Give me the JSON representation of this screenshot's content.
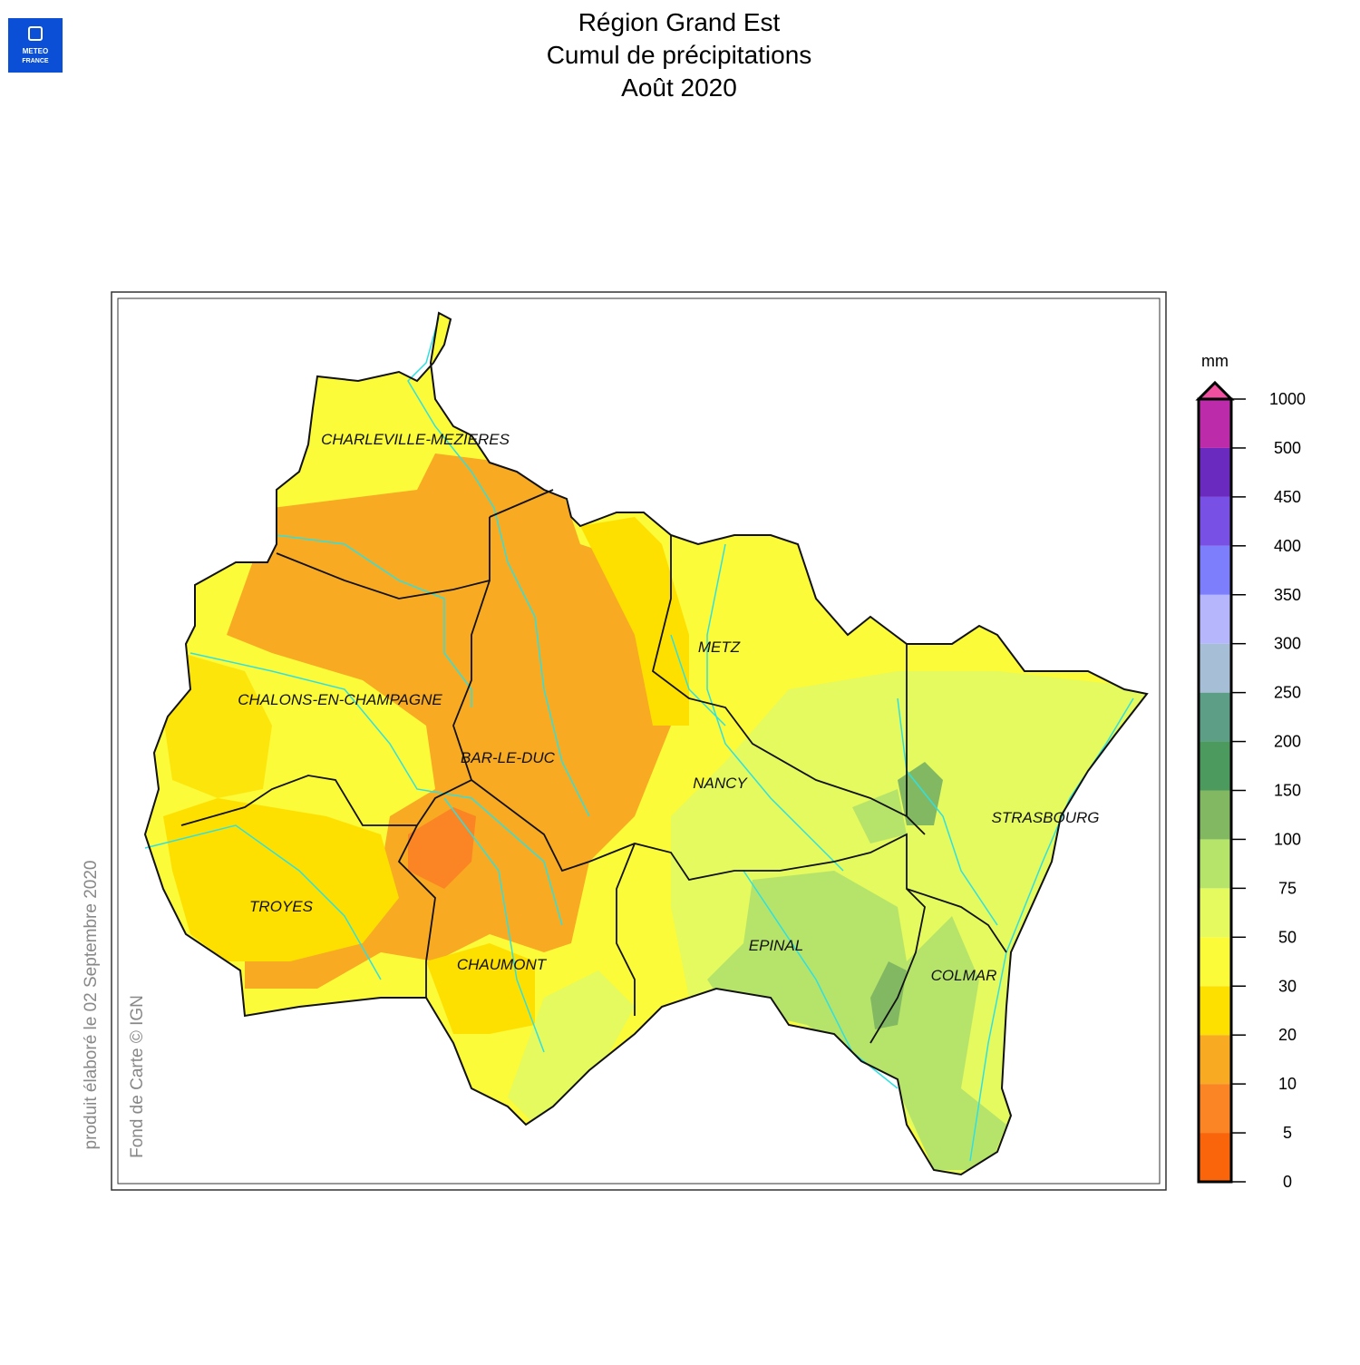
{
  "logo": {
    "lines": [
      "METEO",
      "FRANCE"
    ]
  },
  "header": {
    "title": [
      "Région Grand Est",
      "Cumul de précipitations",
      "Août 2020"
    ]
  },
  "map": {
    "cities": [
      "CHARLEVILLE-MEZIERES",
      "METZ",
      "CHALONS-EN-CHAMPAGNE",
      "BAR-LE-DUC",
      "NANCY",
      "STRASBOURG",
      "TROYES",
      "EPINAL",
      "CHAUMONT",
      "COLMAR"
    ]
  },
  "legend": {
    "unit": "mm",
    "levels": [
      0,
      5,
      10,
      20,
      30,
      50,
      75,
      100,
      150,
      200,
      250,
      300,
      350,
      400,
      450,
      500,
      1000
    ],
    "colors": [
      "#fa640a",
      "#fb8424",
      "#f8aa22",
      "#fde000",
      "#fbfb3a",
      "#e4fa5e",
      "#b6e46a",
      "#82b862",
      "#4c9a5e",
      "#5c9e86",
      "#a6bed6",
      "#b6b6fc",
      "#7c7efc",
      "#7850e6",
      "#6a2ac0",
      "#bc2caa"
    ],
    "overflow_color": "#f050a0"
  },
  "credits": {
    "produced": "produit élaboré le 02 Septembre 2020",
    "basemap": "Fond de Carte © IGN"
  }
}
